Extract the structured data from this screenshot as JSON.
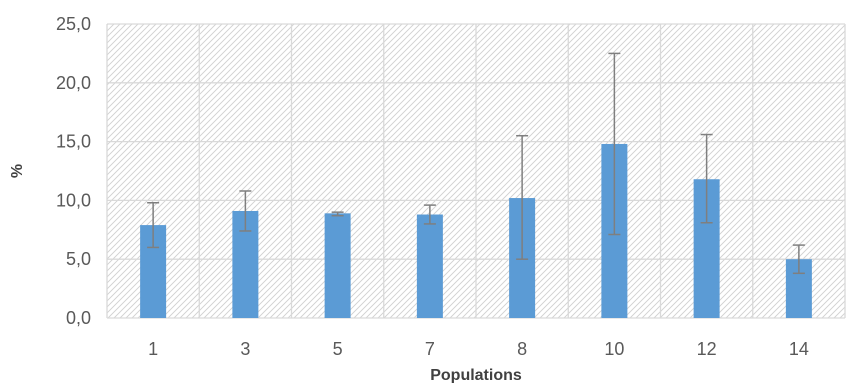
{
  "chart_data": {
    "type": "bar",
    "categories": [
      "1",
      "3",
      "5",
      "7",
      "8",
      "10",
      "12",
      "14"
    ],
    "values": [
      7.9,
      9.1,
      8.9,
      8.8,
      10.2,
      14.8,
      11.8,
      5.0
    ],
    "error_low": [
      6.0,
      7.4,
      8.7,
      8.0,
      5.0,
      7.1,
      8.1,
      3.8
    ],
    "error_high": [
      9.8,
      10.8,
      9.0,
      9.6,
      15.5,
      22.5,
      15.6,
      6.2
    ],
    "xlabel": "Populations",
    "ylabel": "%",
    "ylim": [
      0,
      25
    ],
    "yticks": [
      "0,0",
      "5,0",
      "10,0",
      "15,0",
      "20,0",
      "25,0"
    ],
    "grid": true,
    "plot_background": "diagonal hatch",
    "colors": {
      "bar": "#5B9BD5",
      "error_bar": "#7F7F7F",
      "grid": "#D9D9D9",
      "hatch": "#D0D0D0"
    }
  }
}
